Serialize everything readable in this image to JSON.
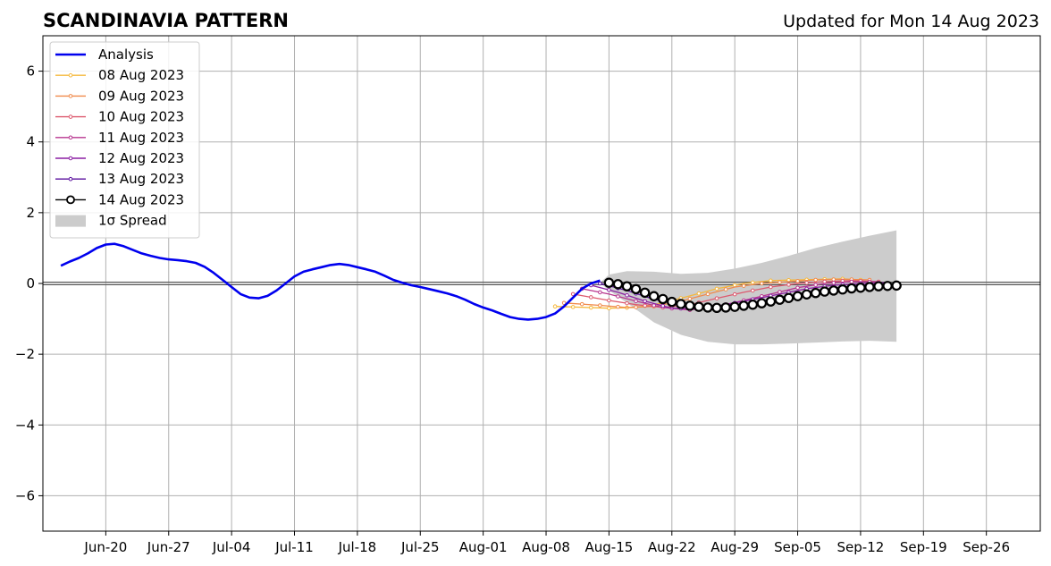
{
  "chart_data": {
    "type": "line",
    "title": "SCANDINAVIA PATTERN",
    "subtitle": "Updated for Mon 14 Aug 2023",
    "xlabel": "",
    "ylabel": "",
    "x_range": [
      "2023-06-13",
      "2023-10-02"
    ],
    "ylim": [
      -7,
      7
    ],
    "y_ticks": [
      -6,
      -4,
      -2,
      0,
      2,
      4,
      6
    ],
    "y_tick_labels": [
      "−6",
      "−4",
      "−2",
      "0",
      "2",
      "4",
      "6"
    ],
    "x_ticks": [
      "2023-06-20",
      "2023-06-27",
      "2023-07-04",
      "2023-07-11",
      "2023-07-18",
      "2023-07-25",
      "2023-08-01",
      "2023-08-08",
      "2023-08-15",
      "2023-08-22",
      "2023-08-29",
      "2023-09-05",
      "2023-09-12",
      "2023-09-19",
      "2023-09-26"
    ],
    "x_tick_labels": [
      "Jun-20",
      "Jun-27",
      "Jul-04",
      "Jul-11",
      "Jul-18",
      "Jul-25",
      "Aug-01",
      "Aug-08",
      "Aug-15",
      "Aug-22",
      "Aug-29",
      "Sep-05",
      "Sep-12",
      "Sep-19",
      "Sep-26"
    ],
    "grid": true,
    "legend_position": "top-left",
    "legend": [
      "Analysis",
      "08 Aug 2023",
      "09 Aug 2023",
      "10 Aug 2023",
      "11 Aug 2023",
      "12 Aug 2023",
      "13 Aug 2023",
      "14 Aug 2023",
      "1σ Spread"
    ],
    "analysis": {
      "name": "Analysis",
      "color": "#0000ee",
      "points": [
        [
          "2023-06-15",
          0.5
        ],
        [
          "2023-06-16",
          0.62
        ],
        [
          "2023-06-17",
          0.72
        ],
        [
          "2023-06-18",
          0.85
        ],
        [
          "2023-06-19",
          1.0
        ],
        [
          "2023-06-20",
          1.1
        ],
        [
          "2023-06-21",
          1.12
        ],
        [
          "2023-06-22",
          1.05
        ],
        [
          "2023-06-23",
          0.95
        ],
        [
          "2023-06-24",
          0.85
        ],
        [
          "2023-06-25",
          0.78
        ],
        [
          "2023-06-26",
          0.72
        ],
        [
          "2023-06-27",
          0.68
        ],
        [
          "2023-06-28",
          0.66
        ],
        [
          "2023-06-29",
          0.63
        ],
        [
          "2023-06-30",
          0.58
        ],
        [
          "2023-07-01",
          0.47
        ],
        [
          "2023-07-02",
          0.3
        ],
        [
          "2023-07-03",
          0.1
        ],
        [
          "2023-07-04",
          -0.1
        ],
        [
          "2023-07-05",
          -0.3
        ],
        [
          "2023-07-06",
          -0.4
        ],
        [
          "2023-07-07",
          -0.42
        ],
        [
          "2023-07-08",
          -0.35
        ],
        [
          "2023-07-09",
          -0.2
        ],
        [
          "2023-07-10",
          0.0
        ],
        [
          "2023-07-11",
          0.2
        ],
        [
          "2023-07-12",
          0.33
        ],
        [
          "2023-07-13",
          0.4
        ],
        [
          "2023-07-14",
          0.46
        ],
        [
          "2023-07-15",
          0.52
        ],
        [
          "2023-07-16",
          0.55
        ],
        [
          "2023-07-17",
          0.52
        ],
        [
          "2023-07-18",
          0.46
        ],
        [
          "2023-07-19",
          0.4
        ],
        [
          "2023-07-20",
          0.33
        ],
        [
          "2023-07-21",
          0.22
        ],
        [
          "2023-07-22",
          0.1
        ],
        [
          "2023-07-23",
          0.02
        ],
        [
          "2023-07-24",
          -0.05
        ],
        [
          "2023-07-25",
          -0.1
        ],
        [
          "2023-07-26",
          -0.16
        ],
        [
          "2023-07-27",
          -0.22
        ],
        [
          "2023-07-28",
          -0.28
        ],
        [
          "2023-07-29",
          -0.36
        ],
        [
          "2023-07-30",
          -0.46
        ],
        [
          "2023-07-31",
          -0.58
        ],
        [
          "2023-08-01",
          -0.68
        ],
        [
          "2023-08-02",
          -0.76
        ],
        [
          "2023-08-03",
          -0.86
        ],
        [
          "2023-08-04",
          -0.95
        ],
        [
          "2023-08-05",
          -1.0
        ],
        [
          "2023-08-06",
          -1.02
        ],
        [
          "2023-08-07",
          -1.0
        ],
        [
          "2023-08-08",
          -0.95
        ],
        [
          "2023-08-09",
          -0.85
        ],
        [
          "2023-08-10",
          -0.65
        ],
        [
          "2023-08-11",
          -0.4
        ],
        [
          "2023-08-12",
          -0.15
        ],
        [
          "2023-08-13",
          0.0
        ],
        [
          "2023-08-14",
          0.08
        ]
      ]
    },
    "forecasts": [
      {
        "name": "08 Aug 2023",
        "color": "#f5b83c",
        "points": [
          [
            "2023-08-09",
            -0.65
          ],
          [
            "2023-08-15",
            -0.7
          ],
          [
            "2023-08-18",
            -0.68
          ],
          [
            "2023-08-21",
            -0.55
          ],
          [
            "2023-08-24",
            -0.35
          ],
          [
            "2023-08-27",
            -0.15
          ],
          [
            "2023-08-30",
            0.0
          ],
          [
            "2023-09-02",
            0.08
          ],
          [
            "2023-09-05",
            0.1
          ],
          [
            "2023-09-08",
            0.12
          ],
          [
            "2023-09-10",
            0.13
          ],
          [
            "2023-09-12",
            0.1
          ]
        ]
      },
      {
        "name": "09 Aug 2023",
        "color": "#f08a4b",
        "points": [
          [
            "2023-08-10",
            -0.55
          ],
          [
            "2023-08-14",
            -0.62
          ],
          [
            "2023-08-17",
            -0.68
          ],
          [
            "2023-08-20",
            -0.65
          ],
          [
            "2023-08-23",
            -0.5
          ],
          [
            "2023-08-26",
            -0.3
          ],
          [
            "2023-08-29",
            -0.1
          ],
          [
            "2023-09-01",
            0.0
          ],
          [
            "2023-09-04",
            0.05
          ],
          [
            "2023-09-07",
            0.1
          ],
          [
            "2023-09-10",
            0.12
          ],
          [
            "2023-09-13",
            0.1
          ]
        ]
      },
      {
        "name": "10 Aug 2023",
        "color": "#dd5a6f",
        "points": [
          [
            "2023-08-11",
            -0.3
          ],
          [
            "2023-08-15",
            -0.48
          ],
          [
            "2023-08-18",
            -0.6
          ],
          [
            "2023-08-21",
            -0.68
          ],
          [
            "2023-08-24",
            -0.6
          ],
          [
            "2023-08-27",
            -0.42
          ],
          [
            "2023-08-30",
            -0.25
          ],
          [
            "2023-09-02",
            -0.1
          ],
          [
            "2023-09-05",
            0.0
          ],
          [
            "2023-09-08",
            0.05
          ],
          [
            "2023-09-11",
            0.08
          ],
          [
            "2023-09-14",
            0.05
          ]
        ]
      },
      {
        "name": "11 Aug 2023",
        "color": "#b8368f",
        "points": [
          [
            "2023-08-12",
            -0.15
          ],
          [
            "2023-08-15",
            -0.3
          ],
          [
            "2023-08-18",
            -0.5
          ],
          [
            "2023-08-21",
            -0.68
          ],
          [
            "2023-08-24",
            -0.75
          ],
          [
            "2023-08-27",
            -0.65
          ],
          [
            "2023-08-30",
            -0.48
          ],
          [
            "2023-09-02",
            -0.3
          ],
          [
            "2023-09-05",
            -0.12
          ],
          [
            "2023-09-08",
            0.0
          ],
          [
            "2023-09-11",
            0.05
          ],
          [
            "2023-09-14",
            0.05
          ]
        ]
      },
      {
        "name": "12 Aug 2023",
        "color": "#8b1fa3",
        "points": [
          [
            "2023-08-13",
            -0.05
          ],
          [
            "2023-08-16",
            -0.25
          ],
          [
            "2023-08-19",
            -0.5
          ],
          [
            "2023-08-22",
            -0.7
          ],
          [
            "2023-08-25",
            -0.72
          ],
          [
            "2023-08-28",
            -0.6
          ],
          [
            "2023-08-31",
            -0.45
          ],
          [
            "2023-09-03",
            -0.3
          ],
          [
            "2023-09-06",
            -0.15
          ],
          [
            "2023-09-09",
            -0.05
          ],
          [
            "2023-09-12",
            0.0
          ],
          [
            "2023-09-15",
            0.02
          ]
        ]
      },
      {
        "name": "13 Aug 2023",
        "color": "#5a0f9e",
        "points": [
          [
            "2023-08-14",
            0.0
          ],
          [
            "2023-08-17",
            -0.2
          ],
          [
            "2023-08-20",
            -0.45
          ],
          [
            "2023-08-23",
            -0.6
          ],
          [
            "2023-08-26",
            -0.68
          ],
          [
            "2023-08-29",
            -0.62
          ],
          [
            "2023-09-01",
            -0.5
          ],
          [
            "2023-09-04",
            -0.35
          ],
          [
            "2023-09-07",
            -0.2
          ],
          [
            "2023-09-10",
            -0.1
          ],
          [
            "2023-09-13",
            -0.05
          ],
          [
            "2023-09-16",
            -0.03
          ]
        ]
      },
      {
        "name": "14 Aug 2023",
        "color": "#000000",
        "marker": "open-circle",
        "points": [
          [
            "2023-08-15",
            0.02
          ],
          [
            "2023-08-16",
            -0.02
          ],
          [
            "2023-08-17",
            -0.08
          ],
          [
            "2023-08-18",
            -0.16
          ],
          [
            "2023-08-19",
            -0.26
          ],
          [
            "2023-08-20",
            -0.36
          ],
          [
            "2023-08-21",
            -0.44
          ],
          [
            "2023-08-22",
            -0.52
          ],
          [
            "2023-08-23",
            -0.58
          ],
          [
            "2023-08-24",
            -0.63
          ],
          [
            "2023-08-25",
            -0.66
          ],
          [
            "2023-08-26",
            -0.68
          ],
          [
            "2023-08-27",
            -0.69
          ],
          [
            "2023-08-28",
            -0.68
          ],
          [
            "2023-08-29",
            -0.66
          ],
          [
            "2023-08-30",
            -0.63
          ],
          [
            "2023-08-31",
            -0.6
          ],
          [
            "2023-09-01",
            -0.56
          ],
          [
            "2023-09-02",
            -0.51
          ],
          [
            "2023-09-03",
            -0.46
          ],
          [
            "2023-09-04",
            -0.41
          ],
          [
            "2023-09-05",
            -0.36
          ],
          [
            "2023-09-06",
            -0.31
          ],
          [
            "2023-09-07",
            -0.27
          ],
          [
            "2023-09-08",
            -0.23
          ],
          [
            "2023-09-09",
            -0.2
          ],
          [
            "2023-09-10",
            -0.17
          ],
          [
            "2023-09-11",
            -0.14
          ],
          [
            "2023-09-12",
            -0.12
          ],
          [
            "2023-09-13",
            -0.1
          ],
          [
            "2023-09-14",
            -0.08
          ],
          [
            "2023-09-15",
            -0.07
          ],
          [
            "2023-09-16",
            -0.06
          ]
        ]
      }
    ],
    "spread": {
      "name": "1σ Spread",
      "color": "#cccccc",
      "upper": [
        [
          "2023-08-14",
          0.02
        ],
        [
          "2023-08-15",
          0.25
        ],
        [
          "2023-08-17",
          0.35
        ],
        [
          "2023-08-20",
          0.33
        ],
        [
          "2023-08-23",
          0.27
        ],
        [
          "2023-08-26",
          0.3
        ],
        [
          "2023-08-29",
          0.42
        ],
        [
          "2023-09-01",
          0.58
        ],
        [
          "2023-09-04",
          0.78
        ],
        [
          "2023-09-07",
          1.0
        ],
        [
          "2023-09-10",
          1.18
        ],
        [
          "2023-09-13",
          1.35
        ],
        [
          "2023-09-16",
          1.5
        ]
      ],
      "lower": [
        [
          "2023-08-14",
          0.02
        ],
        [
          "2023-08-15",
          -0.2
        ],
        [
          "2023-08-17",
          -0.55
        ],
        [
          "2023-08-20",
          -1.1
        ],
        [
          "2023-08-23",
          -1.45
        ],
        [
          "2023-08-26",
          -1.65
        ],
        [
          "2023-08-29",
          -1.72
        ],
        [
          "2023-09-01",
          -1.72
        ],
        [
          "2023-09-04",
          -1.7
        ],
        [
          "2023-09-07",
          -1.67
        ],
        [
          "2023-09-10",
          -1.64
        ],
        [
          "2023-09-13",
          -1.62
        ],
        [
          "2023-09-16",
          -1.65
        ]
      ]
    }
  }
}
